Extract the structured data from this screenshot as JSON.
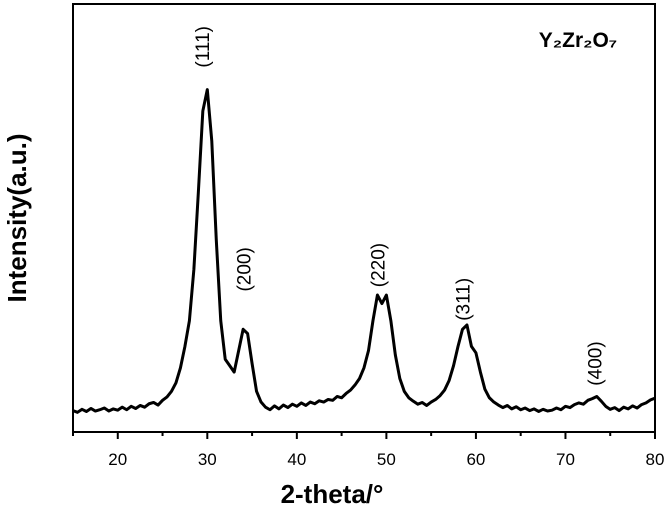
{
  "chart_data": {
    "type": "line",
    "x_label": "2-theta/°",
    "y_label": "Intensity(a.u.)",
    "annotations": [
      {
        "text": "(111)",
        "x": 30.2,
        "y": 90
      },
      {
        "text": "(200)",
        "x": 34.8,
        "y": 38
      },
      {
        "text": "(220)",
        "x": 49.8,
        "y": 39
      },
      {
        "text": "(311)",
        "x": 59.3,
        "y": 31
      },
      {
        "text": "(400)",
        "x": 74.0,
        "y": 16
      },
      {
        "text": "Y₂Zr₂O₇",
        "x": 71.4,
        "y": 90
      }
    ],
    "x": [
      15,
      15.5,
      16,
      16.5,
      17,
      17.5,
      18,
      18.5,
      19,
      19.5,
      20,
      20.5,
      21,
      21.5,
      22,
      22.5,
      23,
      23.5,
      24,
      24.5,
      25,
      25.5,
      26,
      26.5,
      27,
      27.5,
      28,
      28.5,
      29,
      29.5,
      30,
      30.5,
      31,
      31.5,
      32,
      32.5,
      33,
      33.5,
      34,
      34.5,
      35,
      35.5,
      36,
      36.5,
      37,
      37.5,
      38,
      38.5,
      39,
      39.5,
      40,
      40.5,
      41,
      41.5,
      42,
      42.5,
      43,
      43.5,
      44,
      44.5,
      45,
      45.5,
      46,
      46.5,
      47,
      47.5,
      48,
      48.5,
      49,
      49.5,
      50,
      50.5,
      51,
      51.5,
      52,
      52.5,
      53,
      53.5,
      54,
      54.5,
      55,
      55.5,
      56,
      56.5,
      57,
      57.5,
      58,
      58.5,
      59,
      59.5,
      60,
      60.5,
      61,
      61.5,
      62,
      62.5,
      63,
      63.5,
      64,
      64.5,
      65,
      65.5,
      66,
      66.5,
      67,
      67.5,
      68,
      68.5,
      69,
      69.5,
      70,
      70.5,
      71,
      71.5,
      72,
      72.5,
      73,
      73.5,
      74,
      74.5,
      75,
      75.5,
      76,
      76.5,
      77,
      77.5,
      78,
      78.5,
      79,
      79.5,
      80
    ],
    "series": [
      {
        "color": "#000000",
        "values": [
          5.0,
          4.6,
          5.3,
          4.8,
          5.5,
          4.9,
          5.2,
          5.6,
          4.9,
          5.4,
          5.1,
          5.8,
          5.2,
          6.0,
          5.5,
          6.2,
          5.8,
          6.6,
          6.9,
          6.3,
          7.4,
          8.2,
          9.5,
          11.5,
          15,
          20,
          26,
          38,
          56,
          75,
          80,
          68,
          45,
          26,
          17,
          15.5,
          14,
          19,
          24,
          23,
          16,
          9.5,
          7,
          5.8,
          5.2,
          6.1,
          5.4,
          6.3,
          5.7,
          6.5,
          6.0,
          6.8,
          6.2,
          7.0,
          6.6,
          7.3,
          7.0,
          7.6,
          7.4,
          8.3,
          8.0,
          9.0,
          9.8,
          11,
          12.5,
          15,
          19,
          26,
          32,
          30,
          32,
          26,
          18,
          12.5,
          9.5,
          8.0,
          7.2,
          6.5,
          6.9,
          6.2,
          7.0,
          7.6,
          8.5,
          9.8,
          12,
          15.5,
          20,
          24,
          25,
          20,
          18.5,
          14,
          10,
          8.0,
          7.0,
          6.3,
          5.7,
          6.2,
          5.4,
          5.9,
          5.2,
          5.6,
          5.0,
          5.4,
          4.8,
          5.3,
          4.9,
          5.1,
          5.6,
          5.2,
          6.0,
          5.7,
          6.4,
          6.8,
          6.5,
          7.4,
          7.8,
          8.3,
          7.2,
          6.0,
          5.3,
          5.7,
          5.0,
          5.8,
          5.4,
          6.1,
          5.6,
          6.4,
          6.8,
          7.5,
          7.9
        ]
      }
    ],
    "xlim": [
      15,
      80
    ],
    "xticks": [
      20,
      30,
      40,
      50,
      60,
      70,
      80
    ],
    "xminorticks": [
      15,
      25,
      35,
      45,
      55,
      65,
      75
    ],
    "ylim": [
      0,
      100
    ]
  }
}
